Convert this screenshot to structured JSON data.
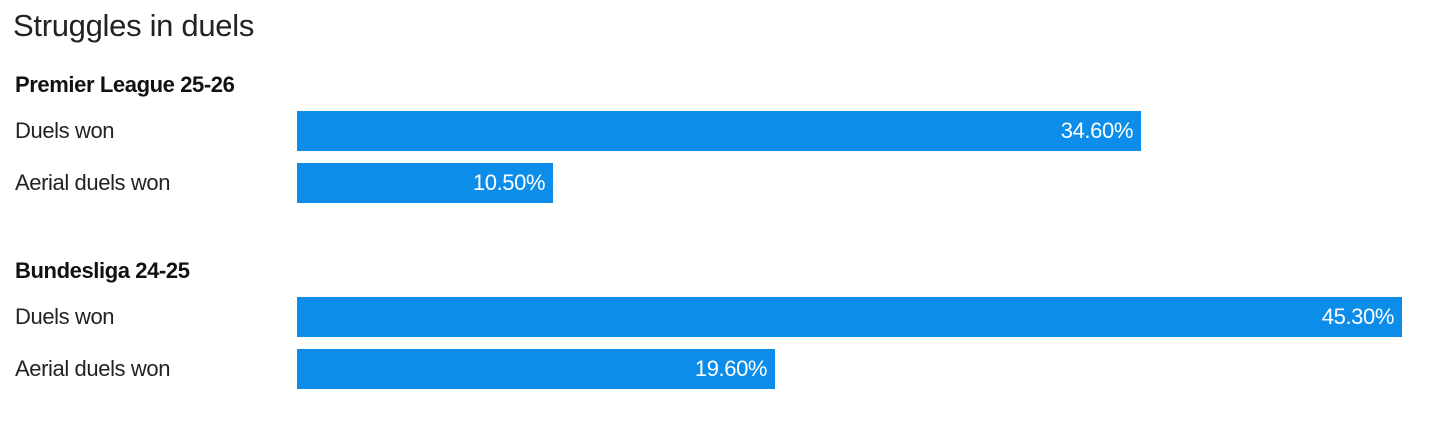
{
  "chart_data": {
    "type": "bar",
    "orientation": "horizontal",
    "title": "Struggles in duels",
    "color": "#0b8de9",
    "xlim": [
      0,
      45.3
    ],
    "grid": false,
    "groups": [
      {
        "name": "Premier League 25-26",
        "categories": [
          "Duels won",
          "Aerial duels won"
        ],
        "values": [
          34.6,
          10.5
        ],
        "labels": [
          "34.60%",
          "10.50%"
        ]
      },
      {
        "name": "Bundesliga 24-25",
        "categories": [
          "Duels won",
          "Aerial duels won"
        ],
        "values": [
          45.3,
          19.6
        ],
        "labels": [
          "45.30%",
          "19.60%"
        ]
      }
    ]
  }
}
